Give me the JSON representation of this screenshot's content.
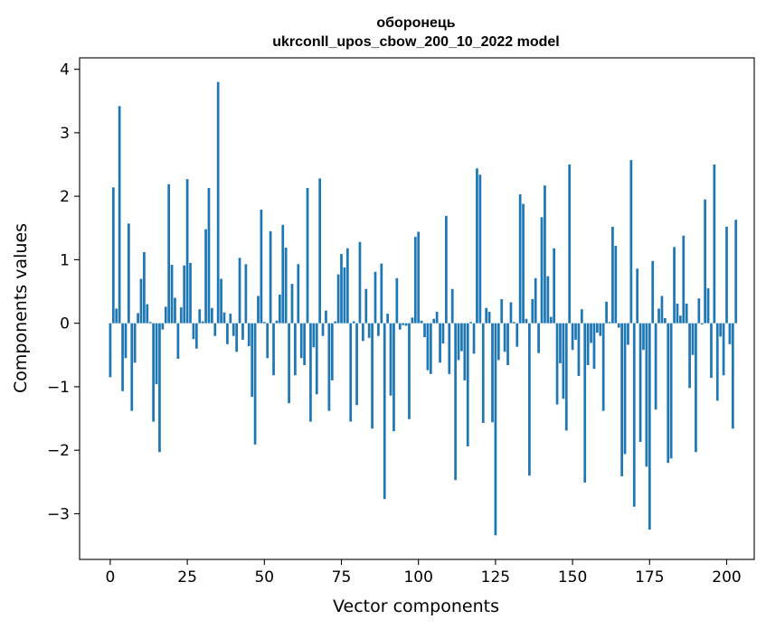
{
  "chart_data": {
    "type": "bar",
    "title": "оборонець",
    "subtitle": "ukrconll_upos_cbow_200_10_2022 model",
    "xlabel": "Vector components",
    "ylabel": "Components values",
    "xlim": [
      -9.95,
      208.95
    ],
    "ylim": [
      -3.72,
      4.18
    ],
    "xticks": [
      0,
      25,
      50,
      75,
      100,
      125,
      150,
      175,
      200
    ],
    "xtick_labels": [
      "0",
      "25",
      "50",
      "75",
      "100",
      "125",
      "150",
      "175",
      "200"
    ],
    "yticks": [
      -3,
      -2,
      -1,
      0,
      1,
      2,
      3,
      4
    ],
    "ytick_labels": [
      "−3",
      "−2",
      "−1",
      "0",
      "1",
      "2",
      "3",
      "4"
    ],
    "grid": false,
    "legend": "none",
    "bar_color": "#1f77b4",
    "values": [
      -0.85,
      2.14,
      0.23,
      3.42,
      -1.07,
      -0.55,
      1.57,
      -1.38,
      -0.62,
      0.16,
      0.7,
      1.12,
      0.3,
      0.02,
      -1.55,
      -0.96,
      -2.03,
      -0.1,
      0.26,
      2.19,
      0.92,
      0.4,
      -0.56,
      0.25,
      0.91,
      2.27,
      0.95,
      -0.25,
      -0.4,
      0.22,
      0.03,
      1.48,
      2.13,
      0.24,
      -0.2,
      3.8,
      0.7,
      0.17,
      -0.33,
      0.15,
      -0.2,
      -0.45,
      1.03,
      -0.26,
      0.93,
      -0.36,
      -1.16,
      -1.91,
      0.43,
      1.79,
      0.02,
      -0.55,
      1.45,
      -0.82,
      0.04,
      0.45,
      1.55,
      1.19,
      -1.26,
      0.62,
      -0.82,
      0.93,
      -0.55,
      -0.66,
      2.13,
      -1.55,
      -0.38,
      -1.12,
      2.28,
      -0.2,
      0.2,
      -1.38,
      -0.9,
      0.03,
      0.77,
      1.09,
      0.88,
      1.18,
      -1.55,
      0.03,
      -1.29,
      1.28,
      -0.28,
      0.54,
      -0.23,
      -1.66,
      0.81,
      -0.2,
      0.94,
      -2.77,
      0.15,
      -1.14,
      -1.7,
      0.71,
      -0.1,
      -0.03,
      -0.04,
      -1.51,
      0.09,
      1.36,
      1.44,
      0.04,
      -0.22,
      -0.74,
      -0.8,
      0.07,
      0.18,
      -0.62,
      -0.32,
      1.69,
      -0.8,
      0.54,
      -2.47,
      -0.58,
      -0.44,
      -0.9,
      -1.94,
      0.02,
      -0.48,
      2.44,
      2.34,
      -1.57,
      0.24,
      0.18,
      -1.56,
      -3.34,
      -0.58,
      0.38,
      -0.45,
      -0.66,
      0.33,
      0.02,
      -0.37,
      2.03,
      1.88,
      0.07,
      -2.4,
      0.38,
      0.71,
      -0.47,
      1.67,
      2.17,
      0.74,
      0.1,
      1.18,
      -1.28,
      -0.63,
      -1.19,
      -1.69,
      2.5,
      -0.42,
      -0.26,
      -0.83,
      0.22,
      -2.51,
      -0.66,
      -0.31,
      -0.72,
      -0.15,
      -0.2,
      -1.38,
      0.34,
      0.02,
      1.52,
      1.22,
      -0.07,
      -2.41,
      -2.06,
      -0.34,
      2.57,
      -2.89,
      0.86,
      -1.87,
      -0.42,
      -2.26,
      -3.25,
      0.98,
      -1.36,
      0.23,
      0.43,
      0.08,
      -2.2,
      -2.13,
      1.2,
      0.31,
      0.12,
      1.38,
      0.31,
      -1.02,
      -0.5,
      -2.03,
      0.39,
      -0.02,
      1.95,
      0.55,
      -0.86,
      2.5,
      -1.22,
      -0.21,
      -0.82,
      1.52,
      -0.33,
      -1.66,
      1.63
    ]
  }
}
